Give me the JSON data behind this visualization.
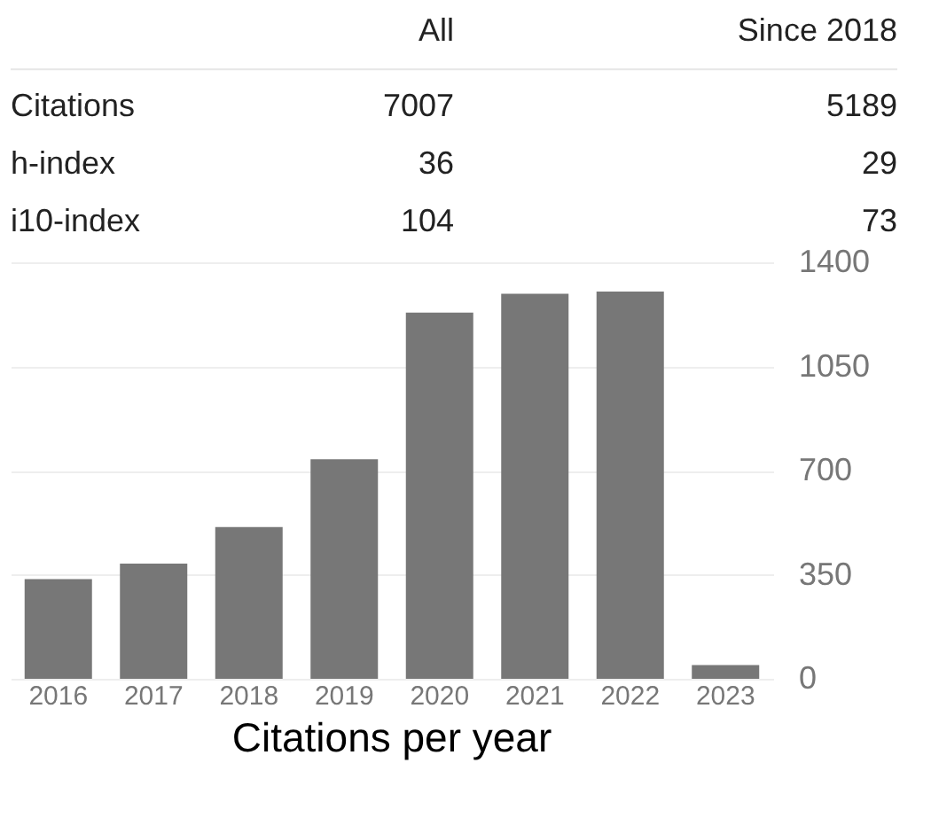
{
  "chart_data": [
    {
      "type": "other",
      "categories": [
        "All",
        "Since 2018"
      ],
      "y_categories": [
        "Citations",
        "h-index",
        "i10-index"
      ],
      "cell_labels": [
        [
          "7007",
          "5189"
        ],
        [
          "36",
          "29"
        ],
        [
          "104",
          "73"
        ]
      ]
    },
    {
      "type": "bar",
      "title": "Citations per year",
      "categories": [
        "2016",
        "2017",
        "2018",
        "2019",
        "2020",
        "2021",
        "2022",
        "2023"
      ],
      "values": [
        335,
        387,
        510,
        738,
        1231,
        1294,
        1302,
        46
      ],
      "color": "#777777",
      "ylim": [
        0,
        1400
      ],
      "yticks": [
        0,
        350,
        700,
        1050,
        1400
      ],
      "grid": "y"
    }
  ]
}
